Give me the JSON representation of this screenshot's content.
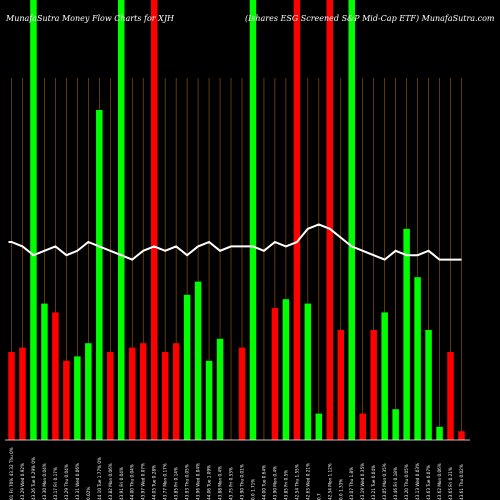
{
  "chart_data": {
    "type": "bar",
    "title_left": "MunafaSutra  Money Flow  Charts for XJH",
    "title_right": "(Ishares ESG Screened S&P Mid-Cap ETF) MunafaSutra.com",
    "colors": {
      "background": "#000000",
      "up": "#00ff00",
      "down": "#ff0000",
      "grid": "#a0600a",
      "price_line": "#ffffff",
      "baseline": "#ffffff",
      "text": "#ffffff"
    },
    "grid": true,
    "ylim": [
      0,
      100
    ],
    "categories": [
      "01 Fri 70% 43.32 Thu 0%",
      "43.29 Wed 0.92%",
      "43.26 Tue 0.29% 0%",
      "43.30 Mon 0.04%",
      "43.17 Fri 0.17%",
      "43.29 Thu 0.04%",
      "43.31 Wed 0.06%",
      "0.02%",
      "44.10 Tue 1.77% 0%",
      "43.82 Mon 0.06%",
      "43.91 Fri 0.04%",
      "44.00 Thu 0.04%",
      "43.97 Wed 0.07%",
      "44.05 Tue 0.28%",
      "43.77 Mon 0.17%",
      "43.85 Fri 0.14%",
      "43.93 Thu 0.05%",
      "43.96 Wed 0.04%",
      "44.06 Tue 1.09%",
      "43.88 Mon 0.4%",
      "43.75 Fri 0.53%",
      "43.90 Thu 0.01%",
      "0.0 1.71%",
      "44.00 Tue 0.64%",
      "43.90 Mon 0.4%",
      "43.85 Fri 0.5%",
      "42.54 Thu 1.55%",
      "42.63 Wed 0.21%",
      "0.7",
      "42.54 Mon 1.12%",
      "0.0 1.33%",
      "43.07 Thu 1.8%",
      "43.19 Wed 0.35%",
      "43.21 Tue 0.04%",
      "43.05 Mon 0.35%",
      "43.46 Fri 0.18%",
      "43.20 Thu 0.05%",
      "43.13 Wed 0.03%",
      "43.63 Tue 0.07%",
      "43.62 Mon 0.06%",
      "43.65 Fri 0.21%",
      "43.61 Thu 0.02%"
    ],
    "series": [
      {
        "name": "",
        "values": [
          20,
          21,
          100,
          31,
          29,
          18,
          19,
          22,
          75,
          20,
          100,
          21,
          22,
          100,
          20,
          22,
          33,
          36,
          18,
          23,
          0,
          21,
          100,
          0,
          30,
          32,
          100,
          31,
          6,
          100,
          25,
          100,
          6,
          25,
          29,
          7,
          48,
          37,
          25,
          3,
          20,
          2
        ],
        "directions": [
          "down",
          "down",
          "up",
          "up",
          "down",
          "down",
          "up",
          "up",
          "up",
          "down",
          "up",
          "down",
          "down",
          "down",
          "down",
          "down",
          "up",
          "up",
          "up",
          "up",
          "down",
          "down",
          "up",
          "down",
          "down",
          "up",
          "down",
          "up",
          "up",
          "down",
          "down",
          "up",
          "down",
          "down",
          "up",
          "up",
          "up",
          "up",
          "up",
          "up",
          "down",
          "down"
        ]
      },
      {
        "name": "",
        "type": "line",
        "values": [
          45,
          44,
          42,
          43,
          44,
          42,
          43,
          45,
          44,
          43,
          42,
          41,
          43,
          44,
          43,
          44,
          42,
          44,
          45,
          43,
          44,
          44,
          44,
          43,
          45,
          44,
          45,
          48,
          49,
          48,
          46,
          44,
          43,
          42,
          41,
          43,
          42,
          42,
          43,
          41,
          41,
          41
        ]
      }
    ]
  }
}
